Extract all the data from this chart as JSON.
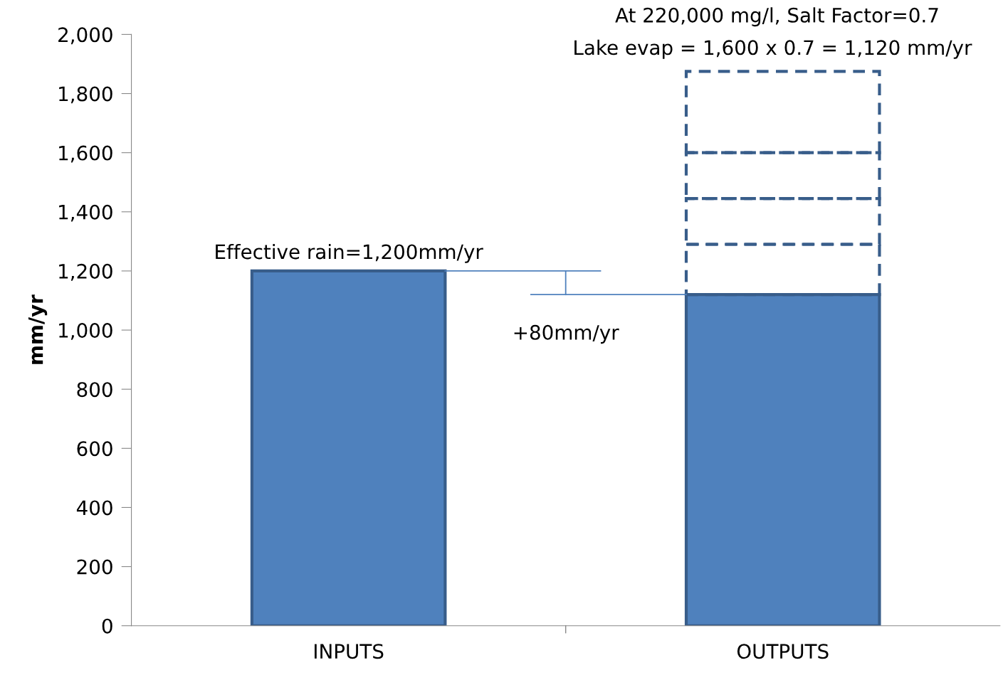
{
  "chart_data": {
    "type": "bar",
    "title": "At 220,000 mg/l, Salt Factor=0.7",
    "subtitle": "Lake evap = 1,600 x 0.7 = 1,120 mm/yr",
    "ylabel": "mm/yr",
    "categories": [
      "INPUTS",
      "OUTPUTS"
    ],
    "stacked": true,
    "series": [
      {
        "color": "#4f81bd",
        "values": [
          1200,
          1120
        ],
        "line_style": "solid"
      },
      {
        "color": "#385d8a",
        "values": [
          null,
          170
        ],
        "line_style": "dashed"
      },
      {
        "color": "#385d8a",
        "values": [
          null,
          155
        ],
        "line_style": "dashed"
      },
      {
        "color": "#385d8a",
        "values": [
          null,
          155
        ],
        "line_style": "dashed"
      },
      {
        "color": "#385d8a",
        "values": [
          null,
          275
        ],
        "line_style": "dashed"
      }
    ],
    "ylim": [
      0,
      2000
    ],
    "yticks": [
      {
        "value": 0,
        "label": "0"
      },
      {
        "value": 200,
        "label": "200"
      },
      {
        "value": 400,
        "label": "400"
      },
      {
        "value": 600,
        "label": "600"
      },
      {
        "value": 800,
        "label": "800"
      },
      {
        "value": 1000,
        "label": "1,000"
      },
      {
        "value": 1200,
        "label": "1,200"
      },
      {
        "value": 1400,
        "label": "1,400"
      },
      {
        "value": 1600,
        "label": "1,600"
      },
      {
        "value": 1800,
        "label": "1,800"
      },
      {
        "value": 2000,
        "label": "2,000"
      }
    ],
    "annotations": [
      {
        "text": "Effective rain=1,200mm/yr",
        "x": "INPUTS",
        "y": 1200
      },
      "+80mm/yr"
    ],
    "ref_lines": [
      {
        "axis": "y",
        "value": 1200,
        "color": "#4f81bd"
      },
      {
        "axis": "y",
        "value": 1120,
        "color": "#4f81bd"
      }
    ],
    "grid": false,
    "legend": false
  }
}
